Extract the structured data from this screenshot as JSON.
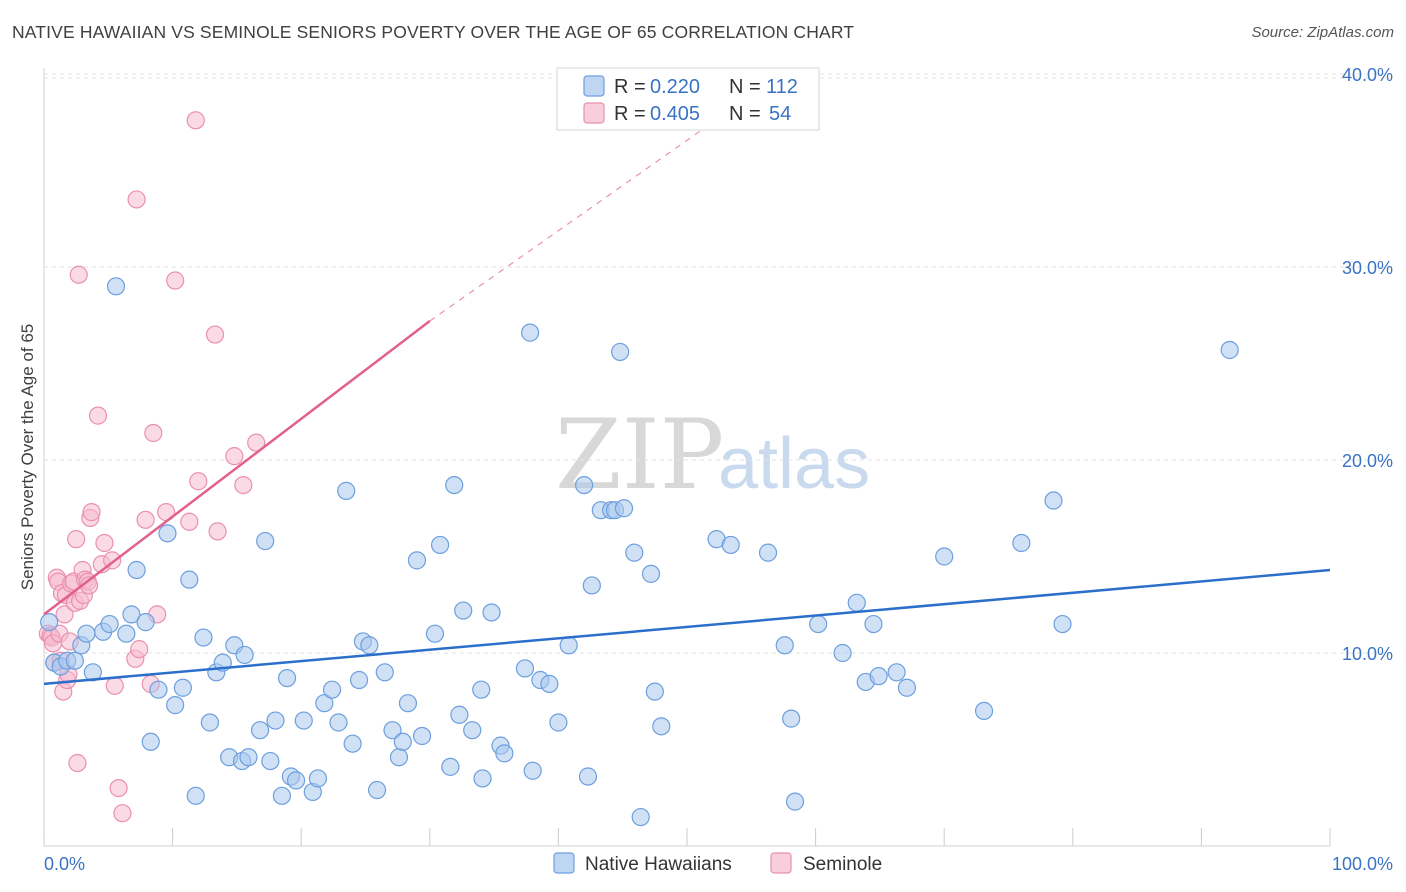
{
  "header": {
    "title": "NATIVE HAWAIIAN VS SEMINOLE SENIORS POVERTY OVER THE AGE OF 65 CORRELATION CHART",
    "source": "Source: ZipAtlas.com"
  },
  "watermark": {
    "part1": "ZIP",
    "part2": "atlas"
  },
  "colors": {
    "blue_fill": "#a9c8ef",
    "blue_stroke": "#6d9fde",
    "blue_line": "#2b6fcb",
    "pink_fill": "#f5bcd0",
    "pink_stroke": "#ea90b0",
    "pink_line": "#e2608d",
    "tick_text": "#3a72c4",
    "grid": "#e3e3e3"
  },
  "legend": {
    "rows": [
      {
        "r_label": "R =",
        "r_value": "0.220",
        "n_label": "N =",
        "n_value": "112",
        "series": "blue"
      },
      {
        "r_label": "R =",
        "r_value": "0.405",
        "n_label": "N =",
        "n_value": "54",
        "series": "pink"
      }
    ]
  },
  "chart_data": {
    "type": "scatter",
    "title": "NATIVE HAWAIIAN VS SEMINOLE SENIORS POVERTY OVER THE AGE OF 65 CORRELATION CHART",
    "xlabel": "",
    "ylabel": "Seniors Poverty Over the Age of 65",
    "xlim": [
      0,
      100
    ],
    "ylim": [
      0,
      40
    ],
    "x_tick_labels": [
      "0.0%",
      "100.0%"
    ],
    "y_ticks": [
      10,
      20,
      30,
      40
    ],
    "y_tick_labels": [
      "10.0%",
      "20.0%",
      "30.0%",
      "40.0%"
    ],
    "grid": true,
    "legend_position": "top-center",
    "series": [
      {
        "name": "Native Hawaiians",
        "color": "#a9c8ef",
        "r": 0.22,
        "n": 112,
        "trend": {
          "x": [
            0,
            100
          ],
          "y": [
            8.4,
            14.3
          ]
        },
        "points": [
          [
            0.4,
            11.6
          ],
          [
            0.8,
            9.5
          ],
          [
            1.3,
            9.3
          ],
          [
            1.8,
            9.6
          ],
          [
            2.4,
            9.6
          ],
          [
            2.9,
            10.4
          ],
          [
            3.3,
            11.0
          ],
          [
            3.8,
            9.0
          ],
          [
            4.6,
            11.1
          ],
          [
            5.1,
            11.5
          ],
          [
            5.6,
            29.0
          ],
          [
            6.4,
            11.0
          ],
          [
            6.8,
            12.0
          ],
          [
            7.2,
            14.3
          ],
          [
            7.9,
            11.6
          ],
          [
            8.3,
            5.4
          ],
          [
            8.9,
            8.1
          ],
          [
            9.6,
            16.2
          ],
          [
            10.2,
            7.3
          ],
          [
            10.8,
            8.2
          ],
          [
            11.3,
            13.8
          ],
          [
            11.8,
            2.6
          ],
          [
            12.4,
            10.8
          ],
          [
            12.9,
            6.4
          ],
          [
            13.4,
            9.0
          ],
          [
            13.9,
            9.5
          ],
          [
            14.4,
            4.6
          ],
          [
            14.8,
            10.4
          ],
          [
            15.4,
            4.4
          ],
          [
            15.6,
            9.9
          ],
          [
            15.9,
            4.6
          ],
          [
            16.8,
            6.0
          ],
          [
            17.2,
            15.8
          ],
          [
            17.6,
            4.4
          ],
          [
            18.0,
            6.5
          ],
          [
            18.5,
            2.6
          ],
          [
            18.9,
            8.7
          ],
          [
            19.2,
            3.6
          ],
          [
            19.6,
            3.4
          ],
          [
            20.2,
            6.5
          ],
          [
            20.9,
            2.8
          ],
          [
            21.3,
            3.5
          ],
          [
            21.8,
            7.4
          ],
          [
            22.4,
            8.1
          ],
          [
            22.9,
            6.4
          ],
          [
            23.5,
            18.4
          ],
          [
            24.0,
            5.3
          ],
          [
            24.5,
            8.6
          ],
          [
            24.8,
            10.6
          ],
          [
            25.3,
            10.4
          ],
          [
            25.9,
            2.9
          ],
          [
            26.5,
            9.0
          ],
          [
            27.1,
            6.0
          ],
          [
            27.6,
            4.6
          ],
          [
            27.9,
            5.4
          ],
          [
            28.3,
            7.4
          ],
          [
            29.0,
            14.8
          ],
          [
            29.4,
            5.7
          ],
          [
            30.4,
            11.0
          ],
          [
            30.8,
            15.6
          ],
          [
            31.6,
            4.1
          ],
          [
            31.9,
            18.7
          ],
          [
            32.3,
            6.8
          ],
          [
            32.6,
            12.2
          ],
          [
            33.3,
            6.0
          ],
          [
            34.0,
            8.1
          ],
          [
            34.1,
            3.5
          ],
          [
            34.8,
            12.1
          ],
          [
            35.5,
            5.2
          ],
          [
            35.8,
            4.8
          ],
          [
            37.4,
            9.2
          ],
          [
            37.8,
            26.6
          ],
          [
            38.0,
            3.9
          ],
          [
            38.6,
            8.6
          ],
          [
            39.3,
            8.4
          ],
          [
            40.0,
            6.4
          ],
          [
            40.8,
            10.4
          ],
          [
            42.0,
            18.7
          ],
          [
            42.3,
            3.6
          ],
          [
            42.6,
            13.5
          ],
          [
            43.3,
            17.4
          ],
          [
            44.1,
            17.4
          ],
          [
            44.4,
            17.4
          ],
          [
            44.8,
            25.6
          ],
          [
            45.1,
            17.5
          ],
          [
            45.9,
            15.2
          ],
          [
            46.4,
            1.5
          ],
          [
            47.2,
            14.1
          ],
          [
            47.5,
            8.0
          ],
          [
            48.0,
            6.2
          ],
          [
            52.3,
            15.9
          ],
          [
            53.4,
            15.6
          ],
          [
            56.3,
            15.2
          ],
          [
            57.6,
            10.4
          ],
          [
            58.1,
            6.6
          ],
          [
            58.4,
            2.3
          ],
          [
            60.2,
            11.5
          ],
          [
            62.1,
            10.0
          ],
          [
            63.2,
            12.6
          ],
          [
            63.9,
            8.5
          ],
          [
            64.5,
            11.5
          ],
          [
            64.9,
            8.8
          ],
          [
            66.3,
            9.0
          ],
          [
            67.1,
            8.2
          ],
          [
            70.0,
            15.0
          ],
          [
            73.1,
            7.0
          ],
          [
            76.0,
            15.7
          ],
          [
            78.5,
            17.9
          ],
          [
            79.2,
            11.5
          ],
          [
            92.2,
            25.7
          ]
        ]
      },
      {
        "name": "Seminole",
        "color": "#f5bcd0",
        "r": 0.405,
        "n": 54,
        "trend": {
          "x": [
            0,
            30
          ],
          "y": [
            12.0,
            27.2
          ]
        },
        "trend_extension": {
          "x": [
            30,
            52
          ],
          "y": [
            27.2,
            37.5
          ]
        },
        "points": [
          [
            0.3,
            11.0
          ],
          [
            0.5,
            10.9
          ],
          [
            0.6,
            10.8
          ],
          [
            0.7,
            10.5
          ],
          [
            0.8,
            9.5
          ],
          [
            1.0,
            13.9
          ],
          [
            1.1,
            13.7
          ],
          [
            1.2,
            11.0
          ],
          [
            1.3,
            9.6
          ],
          [
            1.4,
            13.1
          ],
          [
            1.5,
            8.0
          ],
          [
            1.6,
            12.0
          ],
          [
            1.7,
            13.0
          ],
          [
            1.8,
            8.6
          ],
          [
            1.9,
            8.9
          ],
          [
            2.0,
            10.6
          ],
          [
            2.1,
            13.6
          ],
          [
            2.3,
            13.7
          ],
          [
            2.4,
            12.6
          ],
          [
            2.5,
            15.9
          ],
          [
            2.6,
            4.3
          ],
          [
            2.7,
            29.6
          ],
          [
            2.8,
            12.7
          ],
          [
            3.0,
            14.3
          ],
          [
            3.1,
            13.0
          ],
          [
            3.2,
            13.8
          ],
          [
            3.4,
            13.7
          ],
          [
            3.5,
            13.5
          ],
          [
            3.6,
            17.0
          ],
          [
            3.7,
            17.3
          ],
          [
            4.2,
            22.3
          ],
          [
            4.5,
            14.6
          ],
          [
            4.7,
            15.7
          ],
          [
            5.3,
            14.8
          ],
          [
            5.5,
            8.3
          ],
          [
            5.8,
            3.0
          ],
          [
            6.1,
            1.7
          ],
          [
            7.1,
            9.7
          ],
          [
            7.2,
            33.5
          ],
          [
            7.4,
            10.2
          ],
          [
            7.9,
            16.9
          ],
          [
            8.3,
            8.4
          ],
          [
            8.5,
            21.4
          ],
          [
            8.8,
            12.0
          ],
          [
            9.5,
            17.3
          ],
          [
            10.2,
            29.3
          ],
          [
            11.3,
            16.8
          ],
          [
            11.8,
            37.6
          ],
          [
            12.0,
            18.9
          ],
          [
            13.3,
            26.5
          ],
          [
            13.5,
            16.3
          ],
          [
            14.8,
            20.2
          ],
          [
            15.5,
            18.7
          ],
          [
            16.5,
            20.9
          ]
        ]
      }
    ]
  },
  "bottom_legend": [
    {
      "label": "Native Hawaiians",
      "series": "blue"
    },
    {
      "label": "Seminole",
      "series": "pink"
    }
  ]
}
